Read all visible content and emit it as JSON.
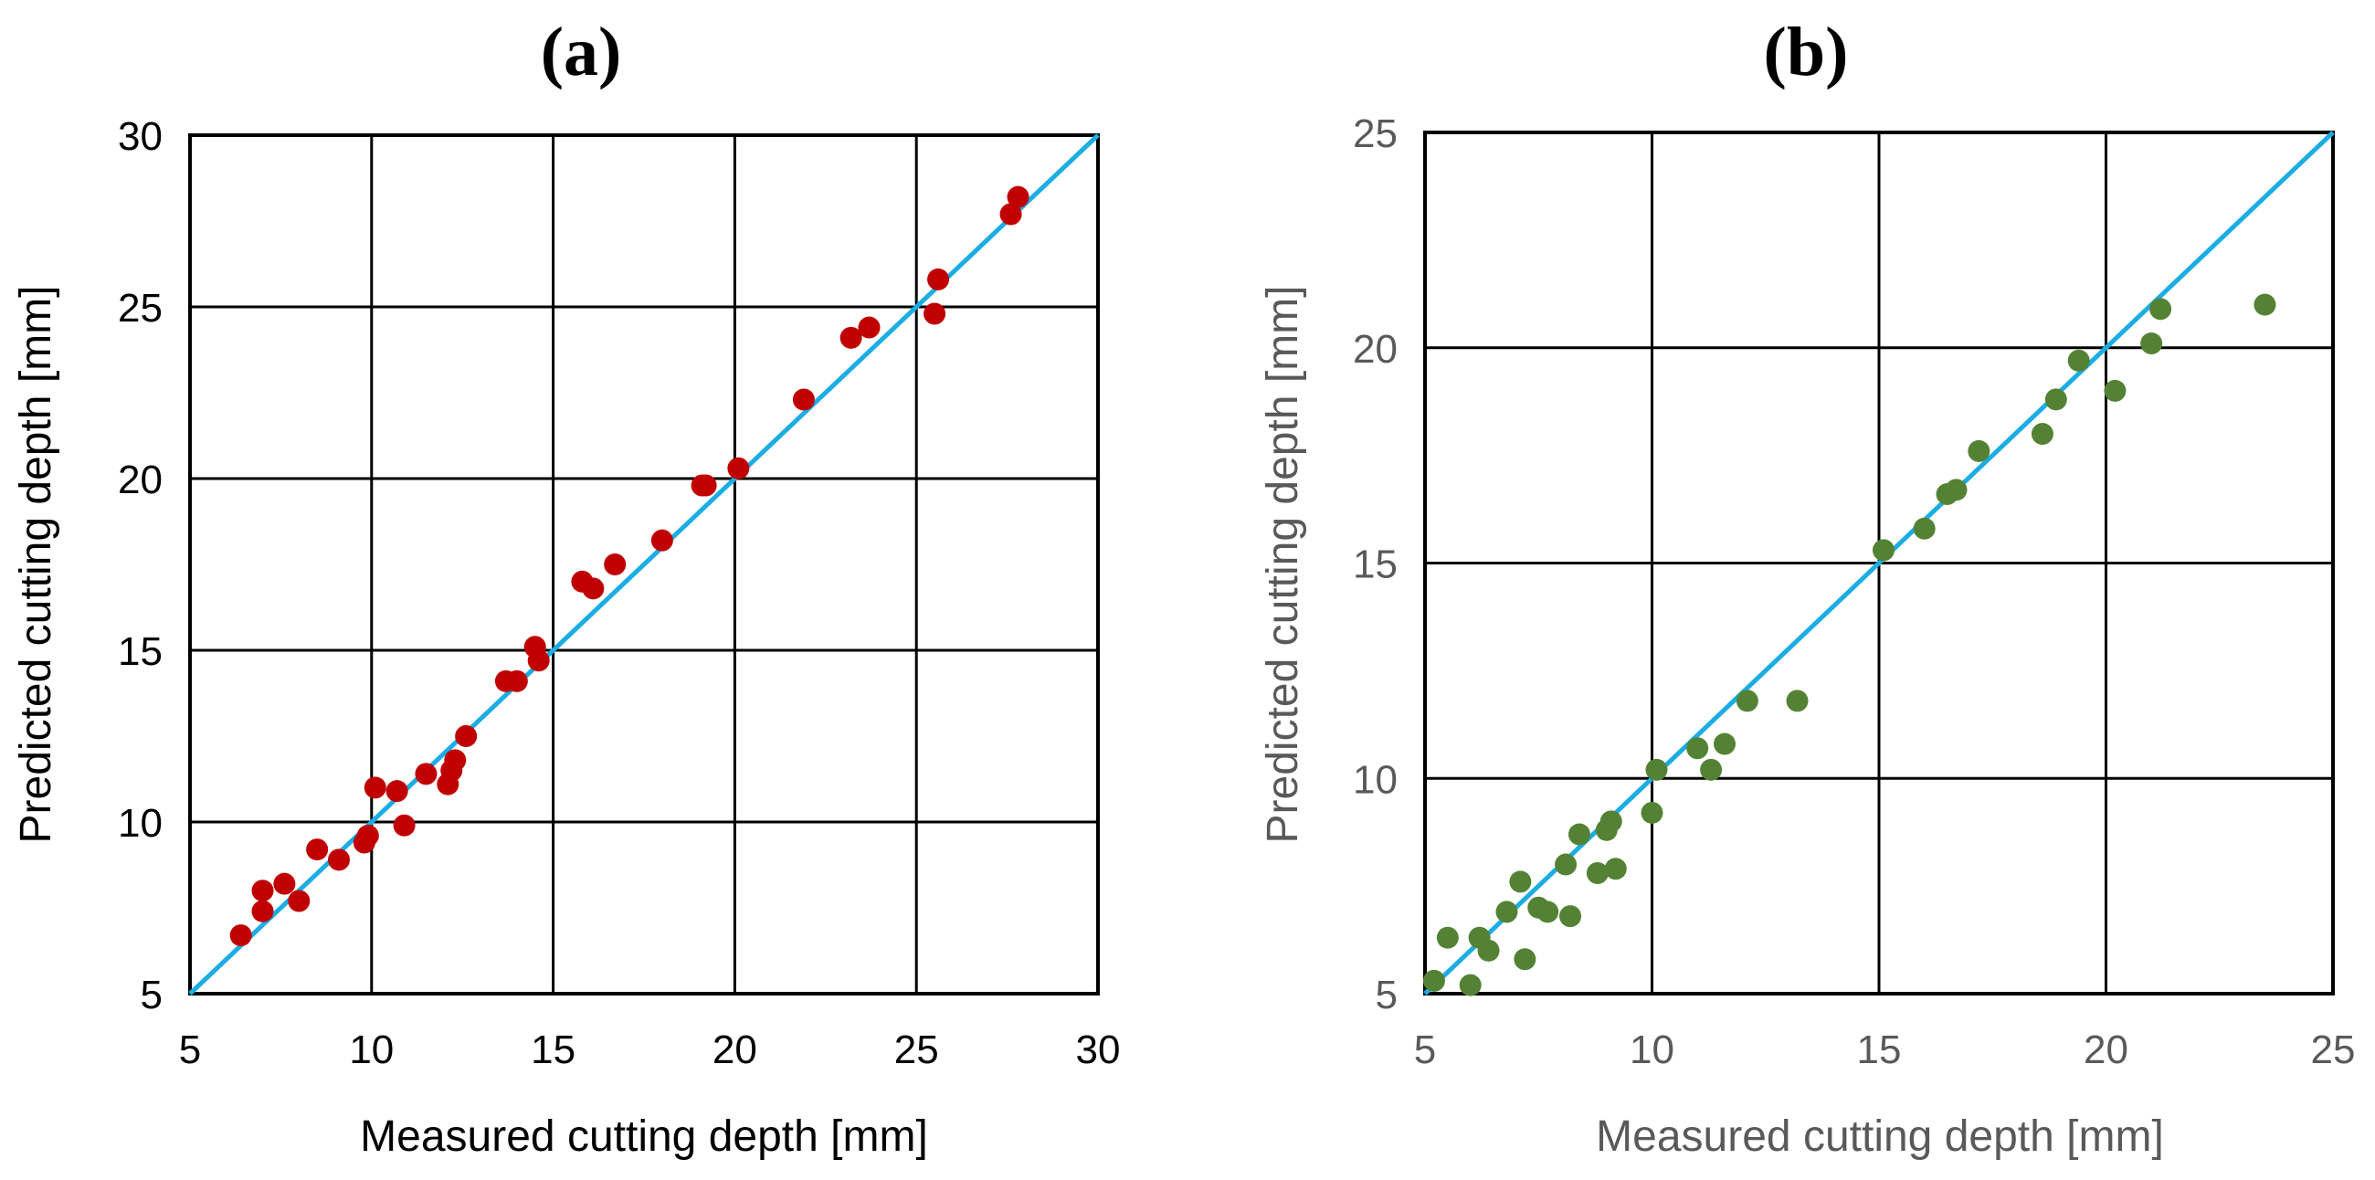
{
  "chart_data": [
    {
      "type": "scatter",
      "panel_label": "(a)",
      "xlabel": "Measured cutting depth  [mm]",
      "ylabel": "Predicted cutting depth  [mm]",
      "xlim": [
        5,
        30
      ],
      "ylim": [
        5,
        30
      ],
      "xticks": [
        5,
        10,
        15,
        20,
        25,
        30
      ],
      "yticks": [
        5,
        10,
        15,
        20,
        25,
        30
      ],
      "grid": true,
      "reference_line": {
        "from": [
          5,
          5
        ],
        "to": [
          30,
          30
        ],
        "color": "#1BADE4"
      },
      "series": [
        {
          "name": "data",
          "color": "#C00000",
          "points": [
            [
              6.4,
              6.7
            ],
            [
              7.0,
              7.4
            ],
            [
              7.0,
              8.0
            ],
            [
              7.6,
              8.2
            ],
            [
              8.0,
              7.7
            ],
            [
              8.5,
              9.2
            ],
            [
              9.1,
              8.9
            ],
            [
              9.8,
              9.4
            ],
            [
              9.9,
              9.6
            ],
            [
              10.1,
              11.0
            ],
            [
              10.7,
              10.9
            ],
            [
              10.9,
              9.9
            ],
            [
              11.5,
              11.4
            ],
            [
              12.1,
              11.1
            ],
            [
              12.2,
              11.5
            ],
            [
              12.3,
              11.8
            ],
            [
              12.6,
              12.5
            ],
            [
              13.7,
              14.1
            ],
            [
              14.0,
              14.1
            ],
            [
              14.5,
              15.1
            ],
            [
              14.6,
              14.7
            ],
            [
              15.8,
              17.0
            ],
            [
              16.1,
              16.8
            ],
            [
              16.7,
              17.5
            ],
            [
              18.0,
              18.2
            ],
            [
              19.1,
              19.8
            ],
            [
              19.2,
              19.8
            ],
            [
              20.1,
              20.3
            ],
            [
              21.9,
              22.3
            ],
            [
              23.2,
              24.1
            ],
            [
              23.7,
              24.4
            ],
            [
              25.5,
              24.8
            ],
            [
              25.6,
              25.8
            ],
            [
              27.6,
              27.7
            ],
            [
              27.8,
              28.2
            ]
          ]
        }
      ]
    },
    {
      "type": "scatter",
      "panel_label": "(b)",
      "xlabel": "Measured cutting depth  [mm]",
      "ylabel": "Predicted cutting depth  [mm]",
      "xlim": [
        5,
        25
      ],
      "ylim": [
        5,
        25
      ],
      "xticks": [
        5,
        10,
        15,
        20,
        25
      ],
      "yticks": [
        5,
        10,
        15,
        20,
        25
      ],
      "grid": true,
      "reference_line": {
        "from": [
          5,
          5
        ],
        "to": [
          25,
          25
        ],
        "color": "#1BADE4"
      },
      "series": [
        {
          "name": "data",
          "color": "#548235",
          "points": [
            [
              5.2,
              5.3
            ],
            [
              5.5,
              6.3
            ],
            [
              6.0,
              5.2
            ],
            [
              6.2,
              6.3
            ],
            [
              6.4,
              6.0
            ],
            [
              6.8,
              6.9
            ],
            [
              7.1,
              7.6
            ],
            [
              7.2,
              5.8
            ],
            [
              7.5,
              7.0
            ],
            [
              7.7,
              6.9
            ],
            [
              8.1,
              8.0
            ],
            [
              8.2,
              6.8
            ],
            [
              8.4,
              8.7
            ],
            [
              8.8,
              7.8
            ],
            [
              9.0,
              8.8
            ],
            [
              9.1,
              9.0
            ],
            [
              9.2,
              7.9
            ],
            [
              10.0,
              9.2
            ],
            [
              10.1,
              10.2
            ],
            [
              11.0,
              10.7
            ],
            [
              11.3,
              10.2
            ],
            [
              11.6,
              10.8
            ],
            [
              12.1,
              11.8
            ],
            [
              13.2,
              11.8
            ],
            [
              15.1,
              15.3
            ],
            [
              16.0,
              15.8
            ],
            [
              16.5,
              16.6
            ],
            [
              16.7,
              16.7
            ],
            [
              17.2,
              17.6
            ],
            [
              18.6,
              18.0
            ],
            [
              18.9,
              18.8
            ],
            [
              19.4,
              19.7
            ],
            [
              20.2,
              19.0
            ],
            [
              21.0,
              20.1
            ],
            [
              21.2,
              20.9
            ],
            [
              23.5,
              21.0
            ]
          ]
        }
      ]
    }
  ]
}
